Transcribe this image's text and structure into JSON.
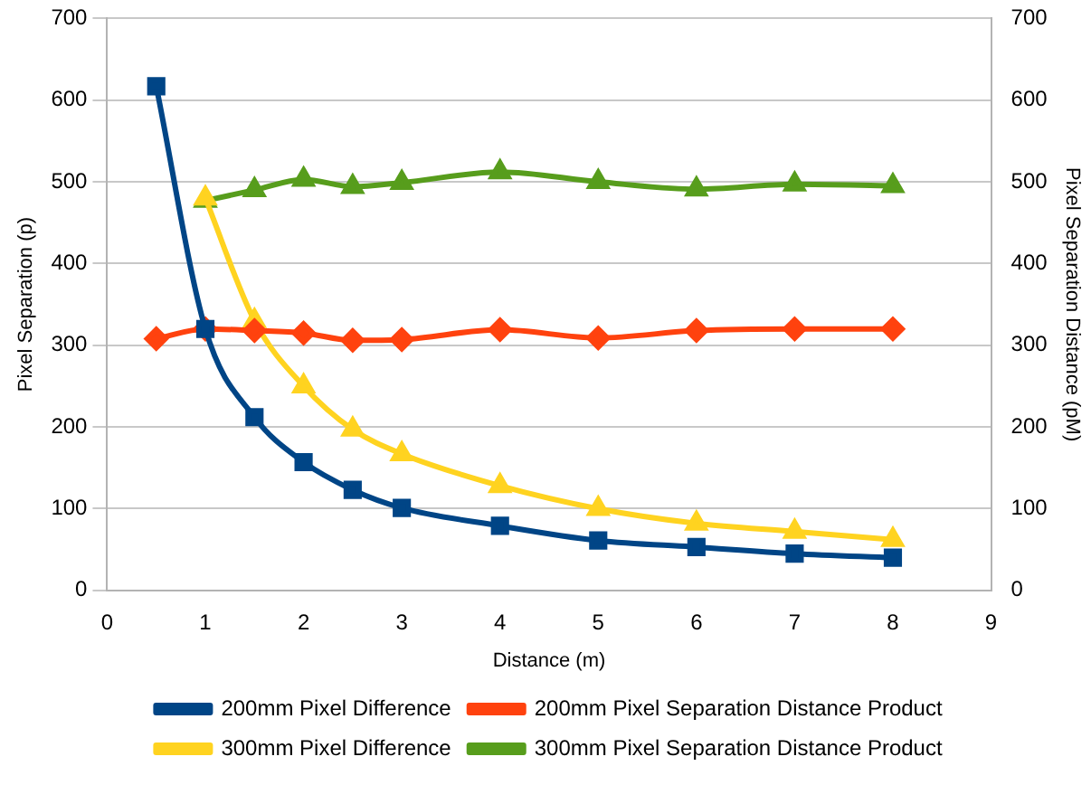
{
  "chart_data": {
    "type": "line",
    "xlabel": "Distance (m)",
    "ylabel": "Pixel Separation (p)",
    "y2label": "Pixel Separation Distance (pM)",
    "xlim": [
      0,
      9
    ],
    "xticks": [
      0,
      1,
      2,
      3,
      4,
      5,
      6,
      7,
      8,
      9
    ],
    "ylim": [
      0,
      700
    ],
    "yticks": [
      0,
      100,
      200,
      300,
      400,
      500,
      600,
      700
    ],
    "y2lim": [
      0,
      700
    ],
    "y2ticks": [
      0,
      100,
      200,
      300,
      400,
      500,
      600,
      700
    ],
    "grid": "y",
    "legend": "bottom",
    "series": [
      {
        "name": "200mm Pixel Difference",
        "color": "#004586",
        "marker": "square",
        "x": [
          0.5,
          1,
          1.5,
          2,
          2.5,
          3,
          4,
          5,
          6,
          7,
          8
        ],
        "values": [
          617,
          320,
          212,
          157,
          123,
          101,
          79,
          61,
          53,
          45,
          40
        ]
      },
      {
        "name": "200mm Pixel Separation Distance Product",
        "color": "#ff420e",
        "marker": "diamond",
        "x": [
          0.5,
          1,
          1.5,
          2,
          2.5,
          3,
          4,
          5,
          6,
          7,
          8
        ],
        "values": [
          308,
          320,
          318,
          315,
          306,
          307,
          319,
          309,
          318,
          320,
          320
        ]
      },
      {
        "name": "300mm Pixel Difference",
        "color": "#ffd320",
        "marker": "triangle",
        "x": [
          1,
          1.5,
          2,
          2.5,
          3,
          4,
          5,
          6,
          7,
          8
        ],
        "values": [
          480,
          330,
          250,
          197,
          167,
          128,
          100,
          82,
          72,
          62
        ]
      },
      {
        "name": "300mm Pixel Separation Distance Product",
        "color": "#579d1c",
        "marker": "triangle",
        "x": [
          1,
          1.5,
          2,
          2.5,
          3,
          4,
          5,
          6,
          7,
          8
        ],
        "values": [
          477,
          490,
          503,
          494,
          499,
          512,
          500,
          491,
          497,
          495
        ]
      }
    ]
  }
}
